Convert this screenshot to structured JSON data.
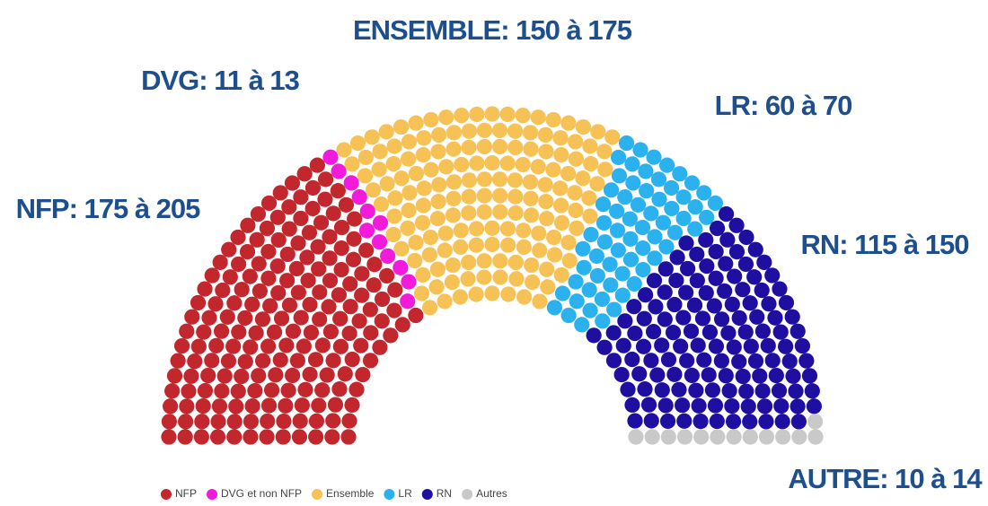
{
  "chart_data": {
    "type": "parliament",
    "series": [
      {
        "name": "NFP",
        "color": "#c1272d",
        "value": 190,
        "label": "NFP: 175 à 205"
      },
      {
        "name": "DVG et non NFP",
        "color": "#f21bdc",
        "value": 12,
        "label": "DVG: 11 à 13"
      },
      {
        "name": "Ensemble",
        "color": "#f6c155",
        "value": 162,
        "label": "ENSEMBLE: 150 à 175"
      },
      {
        "name": "LR",
        "color": "#2bb2ee",
        "value": 65,
        "label": "LR: 60 à 70"
      },
      {
        "name": "RN",
        "color": "#1f0fa0",
        "value": 135,
        "label": "RN: 115 à 150"
      },
      {
        "name": "Autres",
        "color": "#c9c9c9",
        "value": 13,
        "label": "AUTRE: 10 à 14"
      }
    ]
  }
}
